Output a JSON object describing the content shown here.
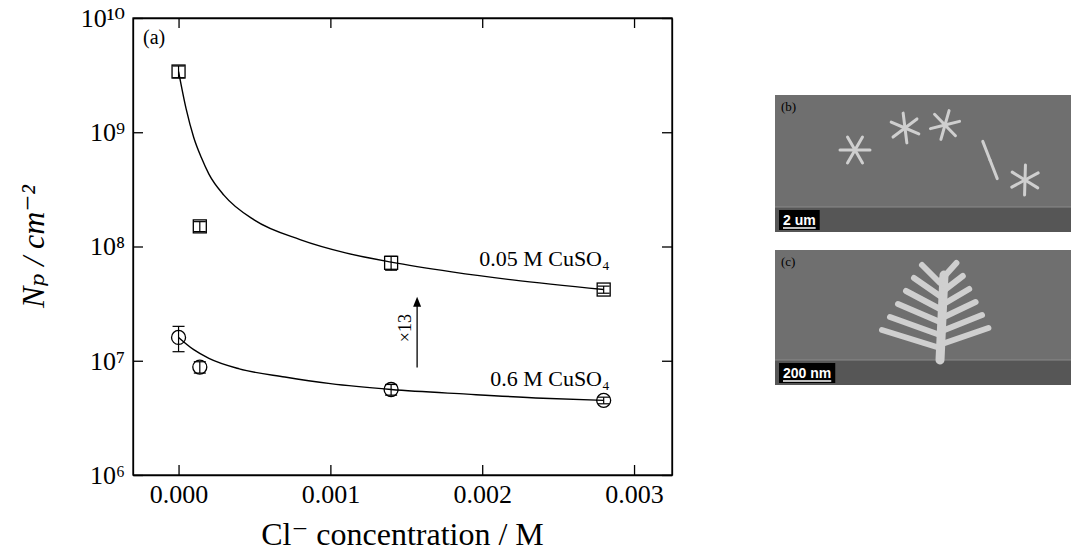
{
  "chart_data": [
    {
      "type": "scatter",
      "title": "(a)",
      "x_label": "Cl⁻ concentration / M",
      "y_label": "Nₚ / cm⁻²",
      "log": "y",
      "xlim": [
        -0.0003,
        0.00325
      ],
      "ylim": [
        1000000,
        10000000000
      ],
      "xticks": [
        {
          "value": 0,
          "label": "0.000"
        },
        {
          "value": 0.001,
          "label": "0.001"
        },
        {
          "value": 0.002,
          "label": "0.002"
        },
        {
          "value": 0.003,
          "label": "0.003"
        }
      ],
      "yticks": [
        {
          "value": 1000000,
          "label": "10⁶"
        },
        {
          "value": 10000000,
          "label": "10⁷"
        },
        {
          "value": 100000000,
          "label": "10⁸"
        },
        {
          "value": 1000000000,
          "label": "10⁹"
        },
        {
          "value": 10000000000,
          "label": "10¹⁰"
        }
      ],
      "annotations": [
        {
          "text": "×13"
        }
      ],
      "series": [
        {
          "name": "0.05 M CuSO₄",
          "type": "scatter",
          "marker": "square",
          "color": "#000000",
          "x": [
            0,
            0.00014,
            0.0014,
            0.0028
          ],
          "values": [
            3400000000,
            150000000,
            72000000,
            42000000
          ],
          "errors": [
            400000000,
            15000000,
            10000000,
            3000000
          ]
        },
        {
          "name": "0.6 M CuSO₄",
          "type": "scatter",
          "marker": "circle",
          "color": "#000000",
          "x": [
            0,
            0.00014,
            0.0014,
            0.0028
          ],
          "values": [
            16000000,
            8800000,
            5600000,
            4500000
          ],
          "errors": [
            4000000,
            1000000,
            600000,
            300000
          ]
        },
        {
          "type": "line",
          "line_style": "solid",
          "color": "#000000",
          "x": [
            0,
            5e-05,
            0.0001,
            0.00015,
            0.0002,
            0.0003,
            0.0005,
            0.0008,
            0.0011,
            0.0014,
            0.0018,
            0.0022,
            0.0028
          ],
          "values": [
            3400000000,
            1600000000,
            900000000,
            600000000,
            430000000,
            280000000,
            170000000,
            115000000,
            88000000,
            73000000,
            60000000,
            51000000,
            42000000
          ]
        },
        {
          "type": "line",
          "line_style": "solid",
          "color": "#000000",
          "x": [
            0,
            0.0001,
            0.0002,
            0.0004,
            0.0007,
            0.001,
            0.0014,
            0.0019,
            0.0024,
            0.0028
          ],
          "values": [
            16000000,
            12500000,
            10500000,
            8500000,
            7200000,
            6300000,
            5600000,
            5100000,
            4700000,
            4500000
          ]
        }
      ]
    },
    {
      "type": "image",
      "title": "(b)",
      "annotations": [
        "2 um"
      ]
    },
    {
      "type": "image",
      "title": "(c)",
      "annotations": [
        "200 nm"
      ]
    }
  ]
}
